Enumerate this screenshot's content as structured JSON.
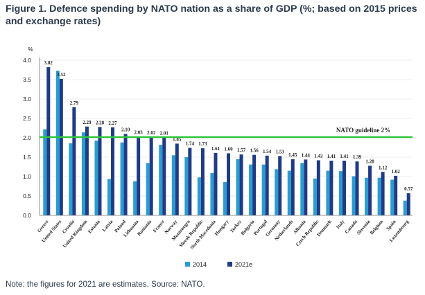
{
  "title": "Figure 1. Defence spending by NATO nation as a share of GDP (%; based on 2015 prices and exchange rates)",
  "note": "Note: the figures for 2021 are estimates. Source: NATO.",
  "colors": {
    "s2014": "#2b9cd1",
    "s2021": "#1f3b86",
    "guideline": "#2ec63a",
    "grid": "#d9d9d9"
  },
  "chart_data": {
    "type": "bar",
    "ylabel": "%",
    "ylim": [
      0,
      4
    ],
    "yticks": [
      "0.0",
      "0.5",
      "1.0",
      "1.5",
      "2.0",
      "2.5",
      "3.0",
      "3.5",
      "4.0"
    ],
    "grid": true,
    "legend": "bottom",
    "guideline": {
      "label": "NATO guideline 2%",
      "value": 2.0
    },
    "categories": [
      "Greece",
      "United States",
      "Croatia",
      "United Kingdom",
      "Estonia",
      "Latvia",
      "Poland",
      "Lithuania",
      "Romania",
      "France",
      "Norway",
      "Montenegro",
      "Slovak Republic",
      "North Macedonia",
      "Hungary",
      "Turkey",
      "Bulgaria",
      "Portugal",
      "Germany",
      "Netherlands",
      "Albania",
      "Czech Republic",
      "Denmark",
      "Italy",
      "Canada",
      "Slovenia",
      "Belgium",
      "Spain",
      "Luxembourg"
    ],
    "series": [
      {
        "name": "2014",
        "values": [
          2.22,
          3.73,
          1.86,
          2.14,
          1.93,
          0.94,
          1.88,
          0.88,
          1.35,
          1.82,
          1.55,
          1.5,
          0.98,
          1.09,
          0.86,
          1.45,
          1.31,
          1.31,
          1.19,
          1.15,
          1.35,
          0.95,
          1.15,
          1.14,
          1.01,
          0.97,
          0.97,
          0.92,
          0.38
        ]
      },
      {
        "name": "2021e",
        "values": [
          3.82,
          3.52,
          2.79,
          2.29,
          2.28,
          2.27,
          2.1,
          2.03,
          2.02,
          2.01,
          1.85,
          1.74,
          1.73,
          1.61,
          1.6,
          1.57,
          1.56,
          1.54,
          1.53,
          1.45,
          1.44,
          1.42,
          1.41,
          1.41,
          1.39,
          1.28,
          1.12,
          1.02,
          0.57
        ],
        "labels": [
          "3.82",
          "3.52",
          "2.79",
          "2.29",
          "2.28",
          "2.27",
          "2.10",
          "2.03",
          "2.02",
          "2.01",
          "1.85",
          "1.74",
          "1.73",
          "1.61",
          "1.60",
          "1.57",
          "1.56",
          "1.54",
          "1.53",
          "1.45",
          "1.44",
          "1.42",
          "1.41",
          "1.41",
          "1.39",
          "1.28",
          "1.12",
          "1.02",
          "0.57"
        ]
      }
    ]
  }
}
